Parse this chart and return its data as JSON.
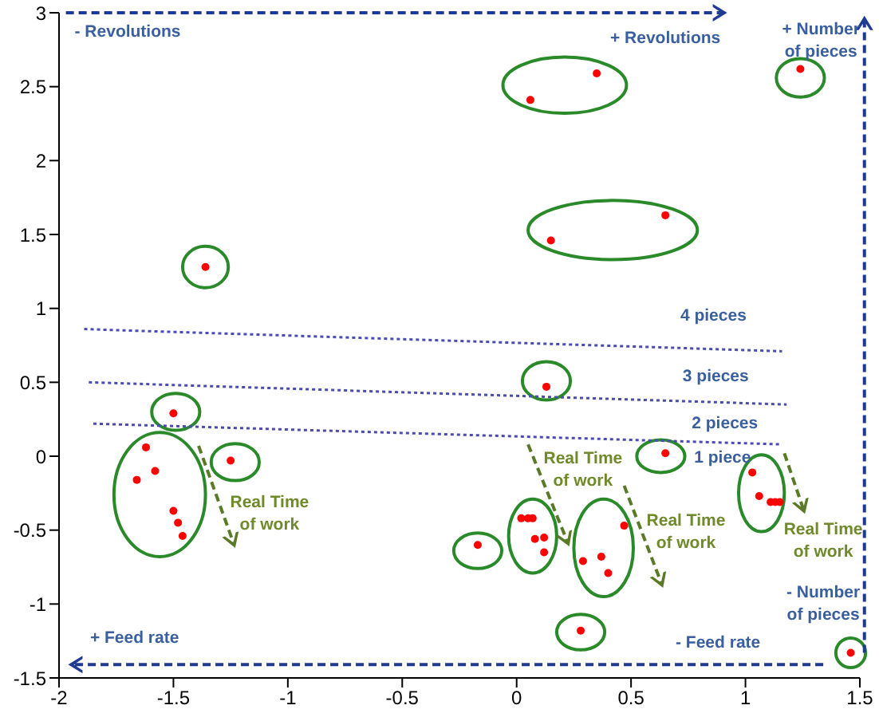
{
  "chart_data": {
    "type": "scatter",
    "xlim": [
      -2,
      1.5
    ],
    "xticks": [
      -2,
      -1.5,
      -1,
      -0.5,
      0,
      0.5,
      1,
      1.5
    ],
    "ylim": [
      -1.5,
      3
    ],
    "yticks": [
      -1.5,
      -1,
      -0.5,
      0,
      0.5,
      1,
      1.5,
      2,
      2.5,
      3
    ],
    "marker": "circle",
    "line_style": "dotted",
    "series": [
      {
        "color": "#ff0000",
        "x": [
          -1.36,
          -1.5,
          -1.25,
          -1.62,
          -1.58,
          -1.66,
          -1.5,
          -1.48,
          -1.46,
          0.35,
          0.06,
          1.24,
          0.65,
          0.15,
          0.13,
          0.65,
          1.03,
          1.06,
          1.11,
          1.13,
          1.15,
          0.02,
          0.05,
          0.07,
          0.08,
          0.12,
          0.12,
          -0.17,
          0.47,
          0.37,
          0.29,
          0.4,
          0.28,
          1.46
        ],
        "values": [
          1.28,
          0.29,
          -0.03,
          0.06,
          -0.1,
          -0.16,
          -0.37,
          -0.45,
          -0.54,
          2.59,
          2.41,
          2.62,
          1.63,
          1.46,
          0.47,
          0.02,
          -0.11,
          -0.27,
          -0.31,
          -0.31,
          -0.31,
          -0.42,
          -0.42,
          -0.42,
          -0.56,
          -0.55,
          -0.65,
          -0.6,
          -0.47,
          -0.68,
          -0.71,
          -0.79,
          -1.18,
          -1.33
        ]
      },
      {
        "type": "line",
        "marker": "none",
        "color": "#4a4ab8",
        "x": [
          -1.89,
          1.16
        ],
        "values": [
          0.86,
          0.71
        ]
      },
      {
        "type": "line",
        "marker": "none",
        "color": "#4a4ab8",
        "x": [
          -1.87,
          1.18
        ],
        "values": [
          0.5,
          0.35
        ]
      },
      {
        "type": "line",
        "marker": "none",
        "color": "#4a4ab8",
        "x": [
          -1.85,
          1.16
        ],
        "values": [
          0.22,
          0.08
        ]
      }
    ],
    "annotations": [
      "- Revolutions",
      "+ Revolutions",
      "+ Number of pieces",
      "- Number of pieces",
      "+ Feed rate",
      "- Feed rate",
      "Real Time of work",
      "Real Time of work",
      "Real Time of work",
      "Real Time of work",
      "4 pieces",
      "3 pieces",
      "2 pieces",
      "1 piece"
    ]
  }
}
